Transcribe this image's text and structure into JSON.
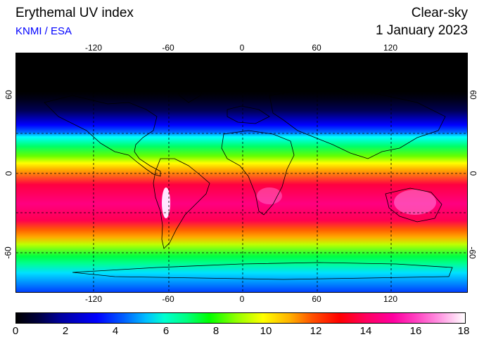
{
  "header": {
    "title": "Erythemal UV index",
    "source": "KNMI / ESA",
    "mode": "Clear-sky",
    "date": "1 January 2023"
  },
  "colors": {
    "source_text": "#0000ff",
    "graticule": "#000000"
  },
  "map": {
    "longitude_ticks_top": [
      "-120",
      "-60",
      "0",
      "60",
      "120"
    ],
    "longitude_ticks_bottom": [
      "-120",
      "-60",
      "0",
      "60",
      "120"
    ],
    "latitude_ticks_left": [
      "60",
      "0",
      "-60"
    ],
    "latitude_ticks_right": [
      "60",
      "0",
      "-60"
    ],
    "graticule": "dashed",
    "projection": "equirectangular"
  },
  "colorbar": {
    "labels": [
      "0",
      "2",
      "4",
      "6",
      "8",
      "10",
      "12",
      "14",
      "16",
      "18"
    ],
    "min": 0,
    "max": 18
  }
}
